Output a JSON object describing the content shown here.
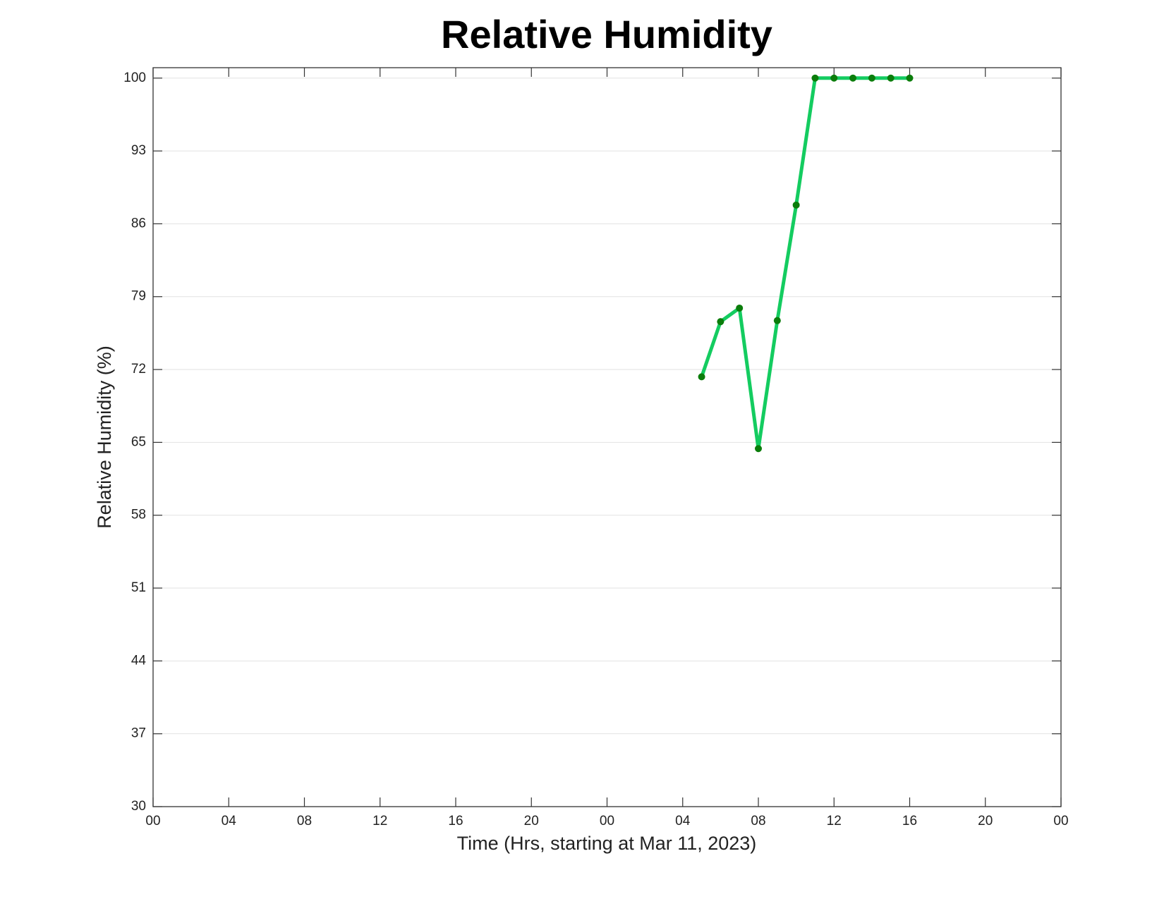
{
  "chart_data": {
    "type": "line",
    "title": "Relative Humidity",
    "x_label": "Time (Hrs, starting at Mar 11, 2023)",
    "y_label": "Relative Humidity (%)",
    "x": [
      29,
      30,
      31,
      32,
      33,
      34,
      35,
      36,
      37,
      38,
      39,
      40
    ],
    "values": [
      71.3,
      76.6,
      77.9,
      64.4,
      76.7,
      87.8,
      100,
      100,
      100,
      100,
      100,
      100
    ],
    "color": "#14cc60",
    "marker_color": "#0b7d0b",
    "xlim": [
      0,
      48
    ],
    "xticks": [
      {
        "value": 0,
        "label": "00"
      },
      {
        "value": 4,
        "label": "04"
      },
      {
        "value": 8,
        "label": "08"
      },
      12,
      16,
      20,
      {
        "value": 24,
        "label": "00"
      },
      {
        "value": 28,
        "label": "04"
      },
      {
        "value": 32,
        "label": "08"
      },
      {
        "value": 36,
        "label": "12"
      },
      {
        "value": 40,
        "label": "16"
      },
      {
        "value": 44,
        "label": "20"
      },
      {
        "value": 48,
        "label": "00"
      }
    ],
    "ylim": [
      30,
      101
    ],
    "yticks": [
      30,
      37,
      44,
      51,
      58,
      65,
      72,
      79,
      86,
      93,
      100
    ],
    "grid": "y"
  }
}
